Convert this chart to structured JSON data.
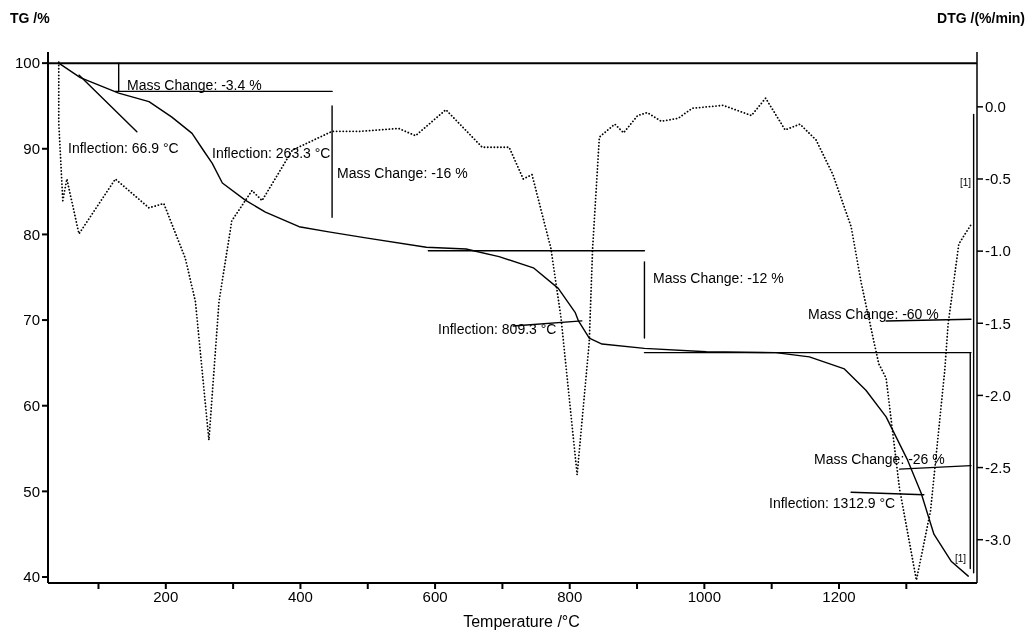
{
  "chart_data": {
    "type": "line",
    "xlabel": "Temperature /°C",
    "ylabel": "TG /%",
    "y2label": "DTG /(%/min)",
    "xlim": [
      25,
      1405
    ],
    "xticks": [
      {
        "value": 100,
        "label": null
      },
      200,
      {
        "value": 300,
        "label": null
      },
      400,
      {
        "value": 500,
        "label": null
      },
      600,
      {
        "value": 700,
        "label": null
      },
      800,
      {
        "value": 900,
        "label": null
      },
      1000,
      {
        "value": 1100,
        "label": null
      },
      1200,
      {
        "value": 1300,
        "label": null
      }
    ],
    "ylim": [
      39.3,
      101.3
    ],
    "yticks": [
      40,
      50,
      60,
      70,
      80,
      90,
      100
    ],
    "y2lim": [
      -3.3,
      0.38
    ],
    "y2ticks": [
      {
        "value": -3,
        "label": "-3.0"
      },
      {
        "value": -2.5,
        "label": "-2.5"
      },
      {
        "value": -2,
        "label": "-2.0"
      },
      {
        "value": -1.5,
        "label": "-1.5"
      },
      {
        "value": -1,
        "label": "-1.0"
      },
      {
        "value": -0.5,
        "label": "-0.5"
      },
      {
        "value": 0,
        "label": "0.0"
      }
    ],
    "grid": false,
    "marker": "none",
    "line_style": "solid",
    "series": [
      {
        "color": "#000000",
        "x": [
          41,
          73,
          130,
          175,
          209,
          239,
          256,
          269,
          284,
          318,
          348,
          398,
          442,
          497,
          587,
          646,
          695,
          746,
          783,
          808,
          813,
          829,
          848,
          911,
          1003,
          1106,
          1156,
          1208,
          1240,
          1270,
          1301,
          1322,
          1341,
          1367,
          1392
        ],
        "values": [
          100,
          98.3,
          96.5,
          95.5,
          93.7,
          91.8,
          89.8,
          88.3,
          86,
          84,
          82.6,
          80.9,
          80.3,
          79.6,
          78.5,
          78.3,
          77.4,
          76.1,
          73.7,
          70.9,
          69.9,
          67.9,
          67.2,
          66.7,
          66.3,
          66.2,
          65.7,
          64.3,
          61.8,
          58.7,
          53.8,
          49.8,
          45,
          41.8,
          40.1
        ]
      },
      {
        "color": "#000000",
        "axis": "y2",
        "line_style": "dotted",
        "x": [
          41,
          41,
          47,
          53,
          71,
          125,
          175,
          197,
          229,
          244,
          264,
          279,
          298,
          328,
          343,
          388,
          447,
          487,
          546,
          571,
          616,
          670,
          710,
          731,
          744,
          772,
          787,
          811,
          829,
          834,
          844,
          867,
          880,
          901,
          915,
          936,
          961,
          982,
          1028,
          1070,
          1091,
          1120,
          1142,
          1166,
          1191,
          1218,
          1233,
          1252,
          1259,
          1270,
          1290,
          1315,
          1336,
          1357,
          1362,
          1378,
          1397
        ],
        "values": [
          0.31,
          -0.11,
          -0.65,
          -0.5,
          -0.88,
          -0.5,
          -0.7,
          -0.67,
          -1.05,
          -1.35,
          -2.31,
          -1.35,
          -0.79,
          -0.58,
          -0.65,
          -0.3,
          -0.17,
          -0.17,
          -0.15,
          -0.2,
          -0.02,
          -0.28,
          -0.28,
          -0.5,
          -0.47,
          -0.98,
          -1.46,
          -2.55,
          -1.63,
          -0.98,
          -0.21,
          -0.12,
          -0.18,
          -0.06,
          -0.04,
          -0.1,
          -0.08,
          -0.01,
          0.01,
          -0.06,
          0.06,
          -0.16,
          -0.12,
          -0.23,
          -0.47,
          -0.83,
          -1.22,
          -1.63,
          -1.78,
          -1.88,
          -2.65,
          -3.28,
          -2.8,
          -1.83,
          -1.51,
          -0.95,
          -0.81
        ]
      },
      {
        "color": "#000000",
        "x": [
          125,
          447
        ],
        "values": [
          96.7,
          96.7
        ]
      },
      {
        "color": "#000000",
        "x": [
          130,
          130
        ],
        "values": [
          100,
          96.7
        ]
      },
      {
        "color": "#000000",
        "x": [
          447,
          447
        ],
        "values": [
          95,
          82
        ]
      },
      {
        "color": "#000000",
        "x": [
          71,
          157
        ],
        "values": [
          98.6,
          92
        ]
      },
      {
        "color": "#000000",
        "x": [
          590,
          911
        ],
        "values": [
          78.1,
          78.1
        ]
      },
      {
        "color": "#000000",
        "x": [
          911,
          911
        ],
        "values": [
          76.8,
          67.9
        ]
      },
      {
        "color": "#000000",
        "x": [
          716,
          818
        ],
        "values": [
          69.3,
          69.9
        ]
      },
      {
        "color": "#000000",
        "x": [
          911,
          1396
        ],
        "values": [
          66.2,
          66.2
        ]
      },
      {
        "color": "#000000",
        "x": [
          1270,
          1396
        ],
        "values": [
          69.9,
          70.1
        ]
      },
      {
        "color": "#000000",
        "x": [
          1290,
          1396
        ],
        "values": [
          52.6,
          53
        ]
      },
      {
        "color": "#000000",
        "x": [
          1218,
          1326
        ],
        "values": [
          49.9,
          49.6
        ]
      },
      {
        "color": "#000000",
        "x": [
          1400,
          1400
        ],
        "values": [
          94,
          40.5
        ]
      },
      {
        "color": "#000000",
        "x": [
          1395,
          1395
        ],
        "values": [
          66.2,
          41
        ]
      }
    ],
    "ref_lines": [
      {
        "axis": "y",
        "value": 100,
        "color": "#000000"
      }
    ],
    "annotations": [
      "Mass Change: -3.4 %",
      "Inflection: 66.9 °C",
      "Inflection: 263.3 °C",
      "Mass Change: -16 %",
      "Mass Change: -12 %",
      "Inflection: 809.3 °C",
      "Mass Change: -60 %",
      "Mass Change: -26 %",
      "Inflection: 1312.9 °C",
      "[1]",
      "[1]"
    ]
  }
}
